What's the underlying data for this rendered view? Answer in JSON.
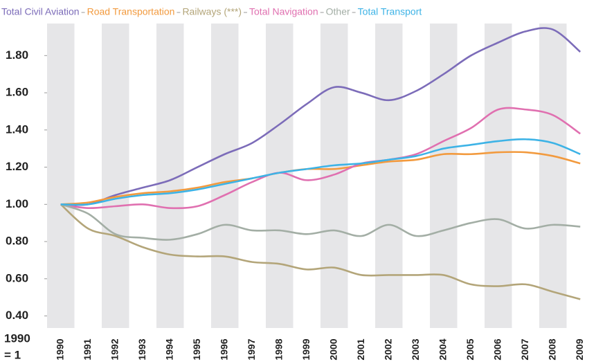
{
  "chart_data": {
    "type": "line",
    "note": [
      "1990",
      "= 1"
    ],
    "categories": [
      "1990",
      "1991",
      "1992",
      "1993",
      "1994",
      "1995",
      "1996",
      "1997",
      "1998",
      "1999",
      "2000",
      "2001",
      "2002",
      "2003",
      "2004",
      "2005",
      "2006",
      "2007",
      "2008",
      "2009"
    ],
    "series": [
      {
        "name": "Total Civil Aviation",
        "color": "#7c6cb9",
        "values": [
          1.0,
          1.0,
          1.05,
          1.09,
          1.13,
          1.2,
          1.27,
          1.33,
          1.43,
          1.54,
          1.63,
          1.6,
          1.56,
          1.61,
          1.7,
          1.8,
          1.87,
          1.93,
          1.94,
          1.82
        ]
      },
      {
        "name": "Road Transportation",
        "color": "#f29a3e",
        "values": [
          1.0,
          1.01,
          1.04,
          1.06,
          1.07,
          1.09,
          1.12,
          1.14,
          1.17,
          1.19,
          1.19,
          1.21,
          1.23,
          1.24,
          1.27,
          1.27,
          1.28,
          1.28,
          1.26,
          1.22
        ]
      },
      {
        "name": "Railways (***)",
        "color": "#b3a579",
        "values": [
          1.0,
          0.87,
          0.83,
          0.77,
          0.73,
          0.72,
          0.72,
          0.69,
          0.68,
          0.65,
          0.66,
          0.62,
          0.62,
          0.62,
          0.62,
          0.57,
          0.56,
          0.57,
          0.53,
          0.49
        ]
      },
      {
        "name": "Total Navigation",
        "color": "#e070b0",
        "values": [
          1.0,
          0.98,
          0.99,
          1.0,
          0.98,
          0.99,
          1.05,
          1.12,
          1.17,
          1.13,
          1.16,
          1.22,
          1.24,
          1.27,
          1.34,
          1.41,
          1.51,
          1.51,
          1.48,
          1.38
        ]
      },
      {
        "name": "Other",
        "color": "#a3aea5",
        "values": [
          1.0,
          0.95,
          0.84,
          0.82,
          0.81,
          0.84,
          0.89,
          0.86,
          0.86,
          0.84,
          0.86,
          0.83,
          0.89,
          0.83,
          0.86,
          0.9,
          0.92,
          0.87,
          0.89,
          0.88
        ]
      },
      {
        "name": "Total Transport",
        "color": "#3db3e6",
        "values": [
          1.0,
          1.0,
          1.03,
          1.05,
          1.06,
          1.08,
          1.11,
          1.14,
          1.17,
          1.19,
          1.21,
          1.22,
          1.24,
          1.26,
          1.3,
          1.32,
          1.34,
          1.35,
          1.33,
          1.27
        ]
      }
    ],
    "ylim": [
      0.35,
      1.95
    ],
    "yticks": [
      {
        "value": 0.4,
        "label": "0.40"
      },
      {
        "value": 0.6,
        "label": "0.60"
      },
      {
        "value": 0.8,
        "label": "0.80"
      },
      {
        "value": 1.0,
        "label": "1.00"
      },
      {
        "value": 1.2,
        "label": "1.20"
      },
      {
        "value": 1.4,
        "label": "1.40"
      },
      {
        "value": 1.6,
        "label": "1.60"
      },
      {
        "value": 1.8,
        "label": "1.80"
      }
    ],
    "legend": "top",
    "grid": false
  }
}
